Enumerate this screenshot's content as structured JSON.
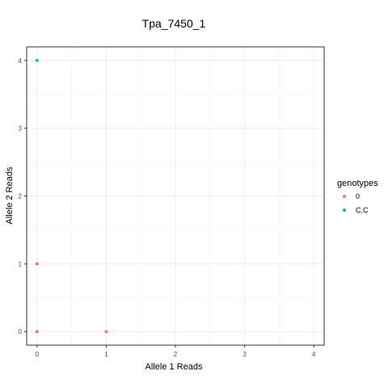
{
  "chart_data": {
    "type": "scatter",
    "title": "Tpa_7450_1",
    "xlabel": "Allele 1 Reads",
    "ylabel": "Allele 2 Reads",
    "xlim": [
      -0.15,
      4.15
    ],
    "ylim": [
      -0.2,
      4.2
    ],
    "xticks": [
      "0",
      "1",
      "2",
      "3",
      "4"
    ],
    "yticks": [
      "0",
      "1",
      "2",
      "3",
      "4"
    ],
    "grid": true,
    "legend": {
      "title": "genotypes",
      "placement": "right",
      "entries": [
        "0",
        "C,C"
      ]
    },
    "series": [
      {
        "name": "0",
        "color": "#F8766D",
        "x": [
          0,
          0,
          1
        ],
        "y": [
          0,
          1,
          0
        ]
      },
      {
        "name": "C,C",
        "color": "#00BFC4",
        "x": [
          0
        ],
        "y": [
          4
        ]
      }
    ]
  }
}
